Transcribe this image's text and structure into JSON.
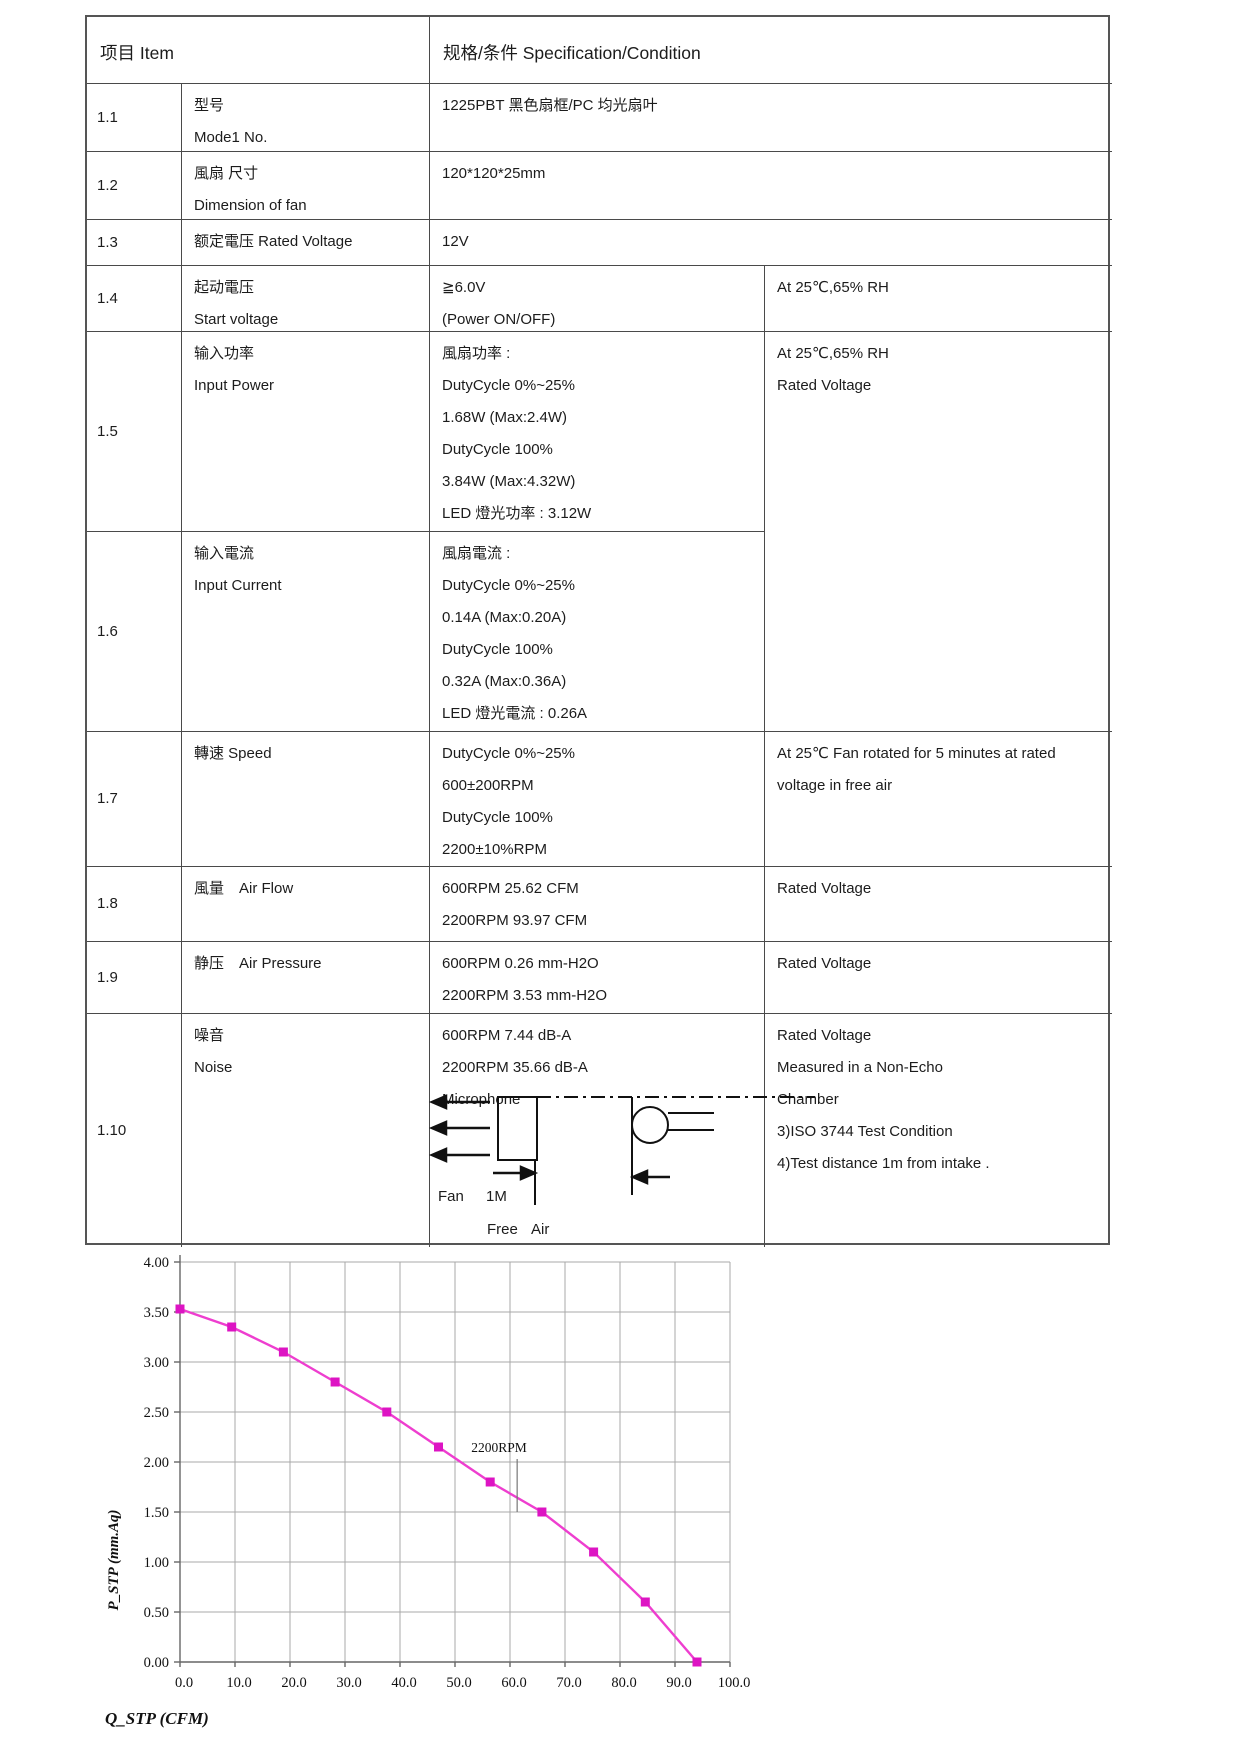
{
  "table": {
    "header": {
      "item": "项目 Item",
      "spec": "规格/条件  Specification/Condition"
    },
    "rows": [
      {
        "no": "1.1",
        "item": [
          "型号",
          "Mode1 No."
        ],
        "spec": [
          "1225PBT 黑色扇框/PC 均光扇叶"
        ],
        "cond": []
      },
      {
        "no": "1.2",
        "item": [
          "風扇 尺寸",
          "Dimension of fan"
        ],
        "spec": [
          "120*120*25mm"
        ],
        "cond": []
      },
      {
        "no": "1.3",
        "item": [
          "额定電压 Rated Voltage"
        ],
        "spec": [
          "12V"
        ],
        "cond": []
      },
      {
        "no": "1.4",
        "item": [
          "起动電压",
          "Start voltage"
        ],
        "spec": [
          "≧6.0V",
          "(Power ON/OFF)"
        ],
        "cond": [
          "At 25℃,65% RH"
        ]
      },
      {
        "no": "1.5",
        "item": [
          "输入功率",
          "Input Power"
        ],
        "spec": [
          "風扇功率 :",
          "DutyCycle 0%~25%",
          "1.68W (Max:2.4W)",
          "DutyCycle 100%",
          "3.84W (Max:4.32W)",
          "LED 燈光功率 : 3.12W"
        ],
        "cond": [
          "At 25℃,65% RH",
          "Rated Voltage"
        ]
      },
      {
        "no": "1.6",
        "item": [
          "输入電流",
          "Input Current"
        ],
        "spec": [
          "風扇電流 :",
          "DutyCycle 0%~25%",
          "0.14A (Max:0.20A)",
          "DutyCycle 100%",
          "0.32A (Max:0.36A)",
          "LED 燈光電流 : 0.26A"
        ],
        "cond": []
      },
      {
        "no": "1.7",
        "item": [
          "轉速 Speed"
        ],
        "spec": [
          "DutyCycle 0%~25%",
          "600±200RPM",
          "DutyCycle 100%",
          "2200±10%RPM"
        ],
        "cond": [
          "At 25℃ Fan rotated for 5 minutes at rated",
          "voltage in free air"
        ]
      },
      {
        "no": "1.8",
        "item": [
          "風量　Air Flow"
        ],
        "spec": [
          "600RPM 25.62 CFM",
          "2200RPM 93.97 CFM"
        ],
        "cond": [
          "Rated Voltage"
        ]
      },
      {
        "no": "1.9",
        "item": [
          "静压　Air Pressure"
        ],
        "spec": [
          "600RPM 0.26 mm-H2O",
          "2200RPM 3.53 mm-H2O"
        ],
        "cond": [
          "Rated Voltage"
        ]
      },
      {
        "no": "1.10",
        "item": [
          "噪音",
          "Noise"
        ],
        "spec": [
          "600RPM 7.44 dB-A",
          "2200RPM 35.66 dB-A",
          "Microphone"
        ],
        "cond": [
          "Rated Voltage",
          "Measured in a Non-Echo",
          "Chamber",
          "3)ISO 3744 Test Condition",
          "4)Test distance 1m from intake ."
        ]
      }
    ]
  },
  "diagram": {
    "fan": "Fan",
    "distance": "1M",
    "free": "Free",
    "air": "Air"
  },
  "chart_data": {
    "type": "line",
    "title": "",
    "xlabel": "Q_STP (CFM)",
    "ylabel": "P_STP (mm.Aq)",
    "xlim": [
      0,
      100
    ],
    "ylim": [
      0,
      4
    ],
    "xtick_step": 10,
    "ytick_step": 0.5,
    "grid": true,
    "legend_position": "none",
    "annotation": "2200RPM",
    "series": [
      {
        "name": "2200RPM",
        "x": [
          0,
          9.4,
          18.8,
          28.2,
          37.6,
          47.0,
          56.4,
          65.8,
          75.2,
          84.6,
          94.0
        ],
        "y": [
          3.53,
          3.35,
          3.1,
          2.8,
          2.5,
          2.15,
          1.8,
          1.5,
          1.1,
          0.6,
          0.0
        ]
      }
    ],
    "line_color": "#ee3ecf",
    "marker_color": "#dd14c3",
    "grid_color": "#a8a8a8"
  }
}
